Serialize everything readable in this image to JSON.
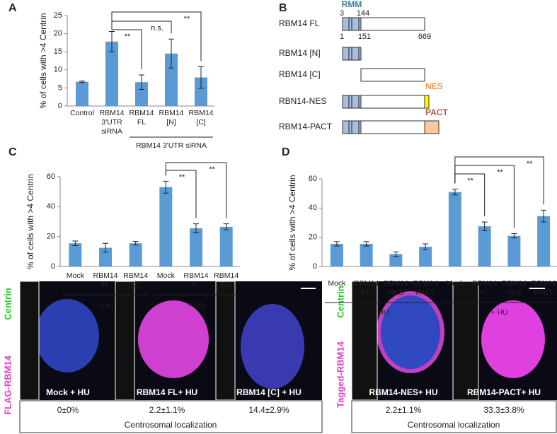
{
  "panel_labels": [
    "A",
    "B",
    "C",
    "D"
  ],
  "chart_data": [
    {
      "type": "bar",
      "y_label": "% of cells with >4 Centrin",
      "color": "#5b9bd5",
      "categories": [
        "Control",
        "RBM14\n3'UTR\nsiRNA",
        "RBM14\nFL",
        "RBM14\n[N]",
        "RBM14\n[C]"
      ],
      "values": [
        6.7,
        17.8,
        6.6,
        14.5,
        7.9
      ],
      "errors": [
        0.2,
        2.8,
        2.0,
        4.0,
        3.0
      ],
      "groups": [
        "RBM14 3'UTR siRNA"
      ],
      "annotations": [
        "**",
        "n.s.",
        "**"
      ],
      "ylim": [
        0,
        25
      ],
      "yticks": [
        0,
        5,
        10,
        15,
        20,
        25
      ]
    },
    {
      "type": "bar",
      "y_label": "% of cells with >4 Centrin",
      "color": "#5b9bd5",
      "categories": [
        "Mock",
        "RBM14\nFL",
        "RBM14\n[C]",
        "Mock",
        "RBM14\nFL",
        "RBM14\n[C]"
      ],
      "values": [
        15.5,
        12.5,
        15.5,
        53,
        25.5,
        26.5
      ],
      "errors": [
        1.5,
        3,
        1.2,
        4,
        3,
        2
      ],
      "groups": [
        "- HU",
        "+ HU"
      ],
      "annotations": [
        "**",
        "**"
      ],
      "ylim": [
        0,
        60
      ],
      "yticks": [
        0,
        20,
        40,
        60
      ]
    },
    {
      "type": "bar",
      "y_label": "% of cells with >4 Centrin",
      "color": "#5b9bd5",
      "categories": [
        "Mock",
        "RBM14\nFL",
        "RBM14\nNES",
        "RBM14\nPACT",
        "Mock",
        "RBM14\nFL",
        "RBM14\nNES",
        "RBM14\nPACT"
      ],
      "values": [
        15.5,
        15.5,
        8.5,
        13.5,
        51,
        27.5,
        21,
        34.5
      ],
      "errors": [
        1.5,
        1.5,
        1.5,
        2,
        2,
        3,
        1.5,
        4
      ],
      "groups": [
        "- HU",
        "+ HU"
      ],
      "annotations": [
        "**",
        "**",
        "**"
      ],
      "ylim": [
        0,
        60
      ],
      "yticks": [
        0,
        20,
        40,
        60
      ]
    }
  ],
  "domain_diagram": {
    "domain": "RMM",
    "top_numbers": [
      "3",
      "144"
    ],
    "bottom_numbers": [
      "1",
      "151",
      "669"
    ],
    "rows": [
      "RBM14 FL",
      "RBM14 [N]",
      "RBM14 [C]",
      "RBN14-NES",
      "RBM14-PACT"
    ],
    "tags": [
      "NES",
      "PACT"
    ]
  },
  "microscopy": [
    {
      "stain_labels": [
        "FLAG-RBM14",
        "Centrin"
      ],
      "panels": [
        {
          "label": "Mock + HU",
          "value": "0±0%"
        },
        {
          "label": "RBM14 FL+ HU",
          "value": "2.2±1.1%"
        },
        {
          "label": "RBM14 [C] + HU",
          "value": "14.4±2.9%"
        }
      ],
      "caption": "Centrosomal localization"
    },
    {
      "stain_labels": [
        "Tagged-RBM14",
        "Centrin"
      ],
      "panels": [
        {
          "label": "RBM14-NES+ HU",
          "value": "2.2±1.1%"
        },
        {
          "label": "RBM14-PACT+ HU",
          "value": "33.3±3.8%"
        }
      ],
      "caption": "Centrosomal localization"
    }
  ]
}
